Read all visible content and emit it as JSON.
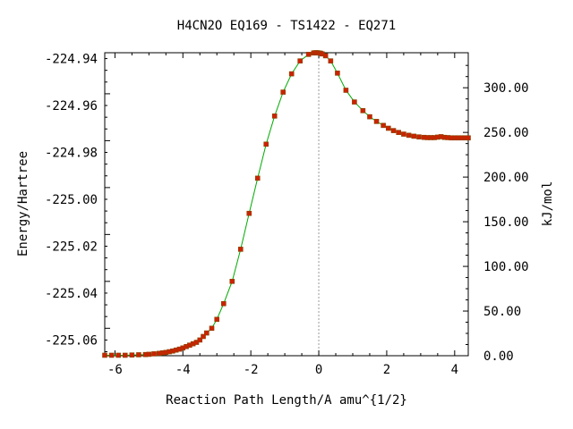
{
  "chart_data": {
    "type": "line",
    "title": "H4CN2O   EQ169 - TS1422 - EQ271",
    "xlabel": "Reaction Path Length/A amu^{1/2}",
    "ylabel": "Energy/Hartree",
    "y2label": "kJ/mol",
    "xlim": [
      -6.3,
      4.4
    ],
    "ylim": [
      -225.0667,
      -224.9375
    ],
    "y2lim": [
      0,
      339.2
    ],
    "x_ticks": [
      -6,
      -4,
      -2,
      0,
      2,
      4
    ],
    "x_tick_labels": [
      "-6",
      "-4",
      "-2",
      "0",
      "2",
      "4"
    ],
    "y_ticks": [
      -224.94,
      -224.96,
      -224.98,
      -225.0,
      -225.02,
      -225.04,
      -225.06
    ],
    "y_tick_labels": [
      "-224.94",
      "-224.96",
      "-224.98",
      "-225.00",
      "-225.02",
      "-225.04",
      "-225.06"
    ],
    "y2_ticks": [
      0,
      50,
      100,
      150,
      200,
      250,
      300
    ],
    "y2_tick_labels": [
      "0.00",
      "50.00",
      "100.00",
      "150.00",
      "200.00",
      "250.00",
      "300.00"
    ],
    "ts_marker_x": 0,
    "grid": false,
    "colors": {
      "line": "#00aa00",
      "marker": "#cc2200",
      "marker_edge": "#884400",
      "ts_line": "#999999"
    },
    "series": [
      {
        "x": [
          -6.3,
          -6.1,
          -5.9,
          -5.7,
          -5.5,
          -5.3,
          -5.1,
          -5.0,
          -4.85,
          -4.7,
          -4.6,
          -4.5,
          -4.4,
          -4.3,
          -4.2,
          -4.1,
          -4.0,
          -3.9,
          -3.8,
          -3.7,
          -3.6,
          -3.5,
          -3.4,
          -3.3,
          -3.15,
          -3.0,
          -2.8,
          -2.55,
          -2.3,
          -2.05,
          -1.8,
          -1.55,
          -1.3,
          -1.05,
          -0.8,
          -0.55,
          -0.3,
          -0.15,
          -0.1,
          -0.05,
          0.0,
          0.05,
          0.1,
          0.2,
          0.35,
          0.55,
          0.8,
          1.05,
          1.3,
          1.5,
          1.7,
          1.9,
          2.05,
          2.2,
          2.35,
          2.5,
          2.65,
          2.8,
          2.95,
          3.1,
          3.2,
          3.3,
          3.4,
          3.5,
          3.6,
          3.7,
          3.8,
          3.9,
          4.0,
          4.1,
          4.2,
          4.3,
          4.4
        ],
        "y": [
          -225.0665,
          -225.0665,
          -225.0665,
          -225.0665,
          -225.0664,
          -225.0663,
          -225.0662,
          -225.0661,
          -225.0659,
          -225.0657,
          -225.0655,
          -225.0653,
          -225.065,
          -225.0647,
          -225.0643,
          -225.0639,
          -225.0634,
          -225.0628,
          -225.0622,
          -225.0616,
          -225.061,
          -225.06,
          -225.0585,
          -225.057,
          -225.055,
          -225.0512,
          -225.0445,
          -225.035,
          -225.0213,
          -225.006,
          -224.991,
          -224.9765,
          -224.9645,
          -224.9543,
          -224.9465,
          -224.941,
          -224.9382,
          -224.9376,
          -224.9375,
          -224.9375,
          -224.9376,
          -224.9377,
          -224.938,
          -224.9388,
          -224.941,
          -224.9462,
          -224.9535,
          -224.9585,
          -224.9622,
          -224.9648,
          -224.9668,
          -224.9685,
          -224.9697,
          -224.9707,
          -224.9715,
          -224.9722,
          -224.9727,
          -224.9731,
          -224.9734,
          -224.9736,
          -224.9737,
          -224.9737,
          -224.9737,
          -224.9735,
          -224.9733,
          -224.9736,
          -224.9737,
          -224.9738,
          -224.9738,
          -224.9738,
          -224.9738,
          -224.9738,
          -224.9738
        ]
      }
    ]
  }
}
